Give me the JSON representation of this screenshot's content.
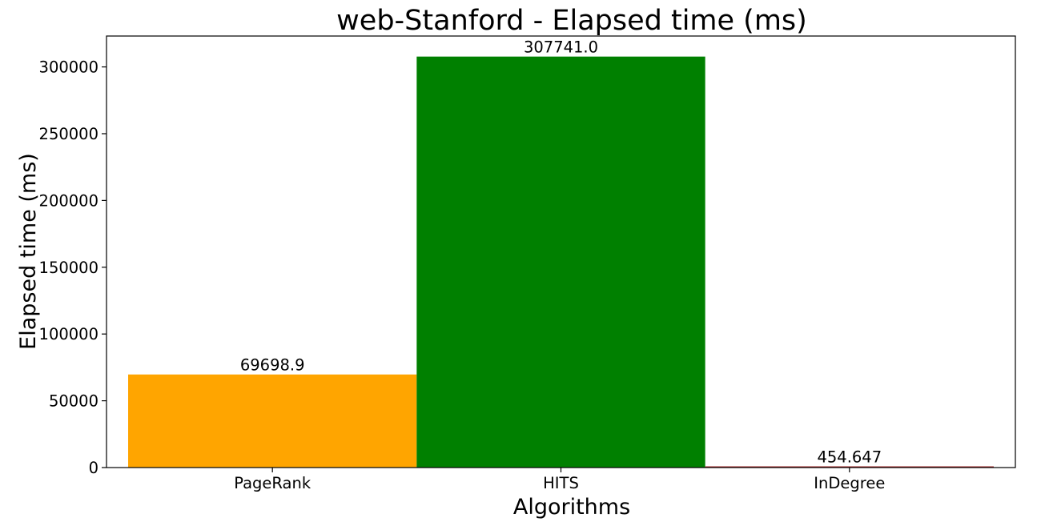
{
  "chart_data": {
    "type": "bar",
    "title": "web-Stanford - Elapsed time (ms)",
    "xlabel": "Algorithms",
    "ylabel": "Elapsed time (ms)",
    "categories": [
      "PageRank",
      "HITS",
      "InDegree"
    ],
    "values": [
      69698.9,
      307741.0,
      454.647
    ],
    "value_labels": [
      "69698.9",
      "307741.0",
      "454.647"
    ],
    "colors": [
      "#ffa500",
      "#008000",
      "#a52a2a"
    ],
    "ylim": [
      0,
      323128
    ],
    "yticks": [
      0,
      50000,
      100000,
      150000,
      200000,
      250000,
      300000
    ],
    "ytick_labels": [
      "0",
      "50000",
      "100000",
      "150000",
      "200000",
      "250000",
      "300000"
    ],
    "grid": false,
    "legend": "none"
  }
}
